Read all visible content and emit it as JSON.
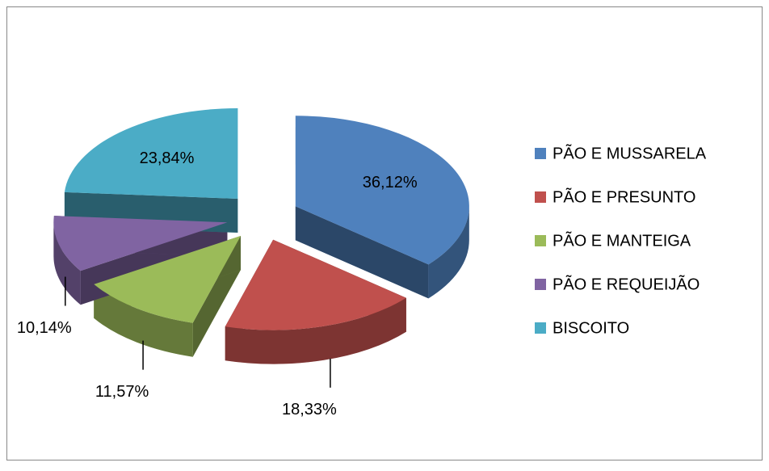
{
  "chart_data": {
    "type": "pie",
    "categories": [
      "PÃO E MUSSARELA",
      "PÃO E PRESUNTO",
      "PÃO E MANTEIGA",
      "PÃO E REQUEIJÃO",
      "BISCOITO"
    ],
    "values": [
      36.12,
      18.33,
      11.57,
      10.14,
      23.84
    ],
    "value_labels": [
      "36,12%",
      "18,33%",
      "11,57%",
      "10,14%",
      "23,84%"
    ],
    "colors": [
      "#4f81bd",
      "#c0504d",
      "#9bbb59",
      "#8064a2",
      "#4bacc6"
    ],
    "legend": "right"
  }
}
